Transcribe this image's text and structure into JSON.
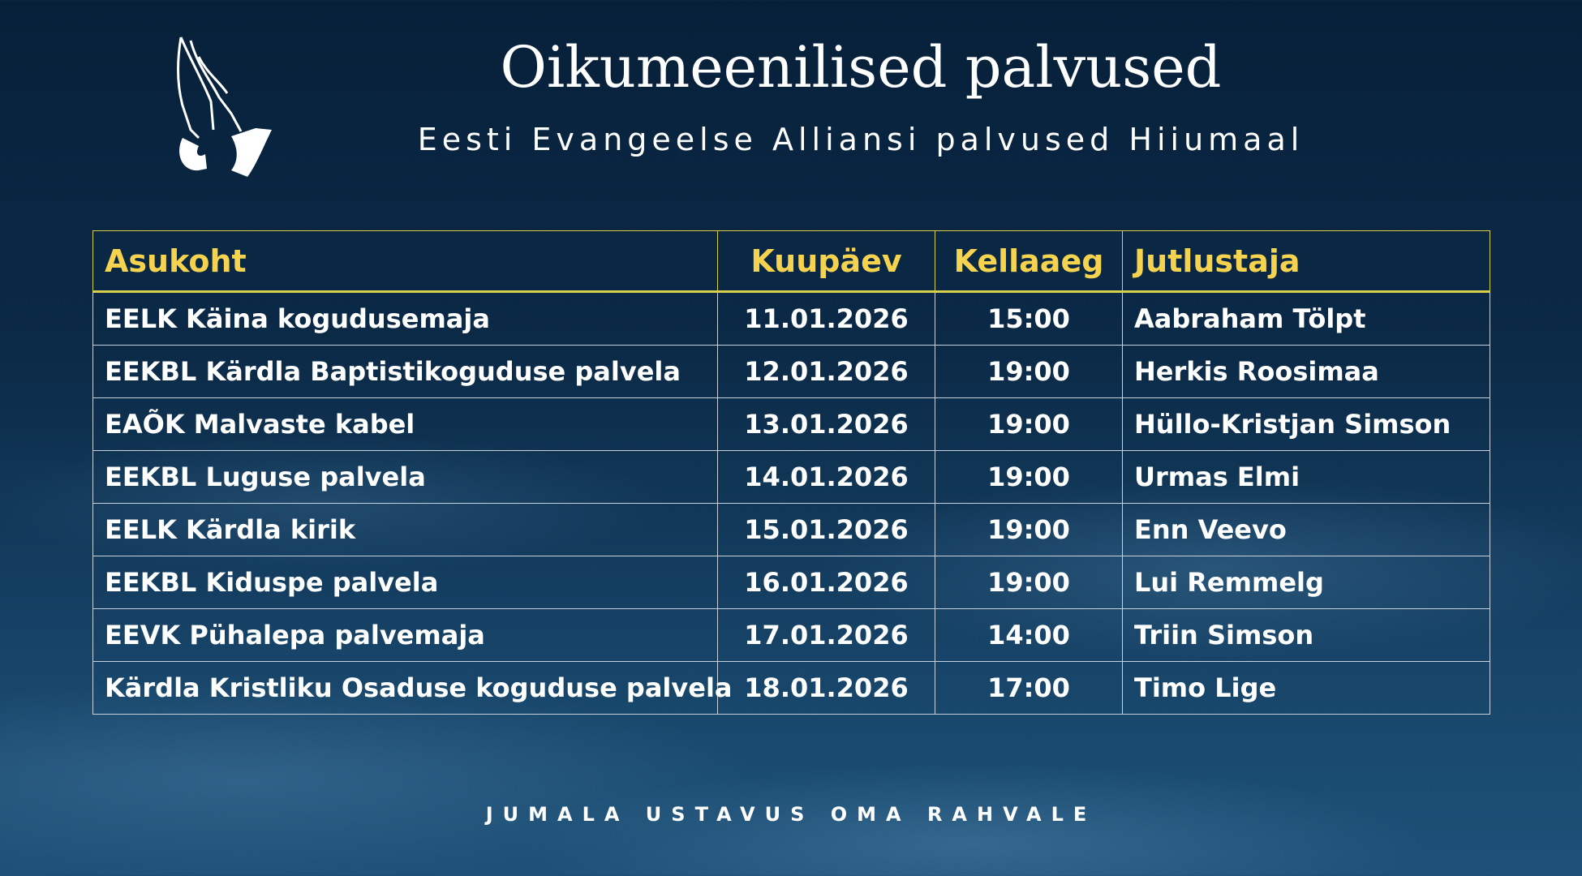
{
  "header": {
    "title": "Oikumeenilised palvused",
    "subtitle": "Eesti Evangeelse Alliansi palvused Hiiumaal"
  },
  "table": {
    "columns": [
      "Asukoht",
      "Kuupäev",
      "Kellaaeg",
      "Jutlustaja"
    ],
    "rows": [
      [
        "EELK Käina kogudusemaja",
        "11.01.2026",
        "15:00",
        "Aabraham Tölpt"
      ],
      [
        "EEKBL Kärdla Baptistikoguduse palvela",
        "12.01.2026",
        "19:00",
        "Herkis Roosimaa"
      ],
      [
        "EAÕK Malvaste kabel",
        "13.01.2026",
        "19:00",
        "Hüllo-Kristjan Simson"
      ],
      [
        "EEKBL Luguse palvela",
        "14.01.2026",
        "19:00",
        "Urmas Elmi"
      ],
      [
        "EELK Kärdla kirik",
        "15.01.2026",
        "19:00",
        "Enn Veevo"
      ],
      [
        "EEKBL Kiduspe palvela",
        "16.01.2026",
        "19:00",
        "Lui Remmelg"
      ],
      [
        "EEVK Pühalepa palvemaja",
        "17.01.2026",
        "14:00",
        "Triin Simson"
      ],
      [
        "Kärdla Kristliku Osaduse koguduse palvela",
        "18.01.2026",
        "17:00",
        "Timo Lige"
      ]
    ]
  },
  "footer": {
    "text": "JUMALA USTAVUS OMA RAHVALE"
  }
}
